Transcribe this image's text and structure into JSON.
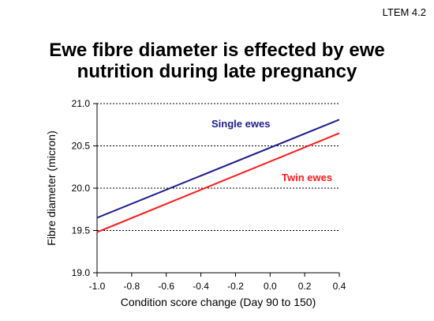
{
  "slide": {
    "code": "LTEM 4.2"
  },
  "chart_data": {
    "type": "line",
    "title": [
      "Ewe fibre diameter is effected by ewe",
      "nutrition during late pregnancy"
    ],
    "xlabel": "Condition score change (Day 90 to 150)",
    "ylabel": "Fibre diameter (micron)",
    "xlim": [
      -1.0,
      0.4
    ],
    "ylim": [
      19.0,
      21.0
    ],
    "x_ticks": [
      "-1.0",
      "-0.8",
      "-0.6",
      "-0.4",
      "-0.2",
      "0.0",
      "0.2",
      "0.4"
    ],
    "y_ticks": [
      "19.0",
      "19.5",
      "20.0",
      "20.5",
      "21.0"
    ],
    "grid": "horizontal dotted",
    "series": [
      {
        "name": "Single ewes",
        "color": "#1f1f8f",
        "x": [
          -1.0,
          0.4
        ],
        "y": [
          19.65,
          20.81
        ]
      },
      {
        "name": "Twin ewes",
        "color": "#ff1a1a",
        "x": [
          -1.0,
          0.4
        ],
        "y": [
          19.48,
          20.65
        ]
      }
    ]
  }
}
